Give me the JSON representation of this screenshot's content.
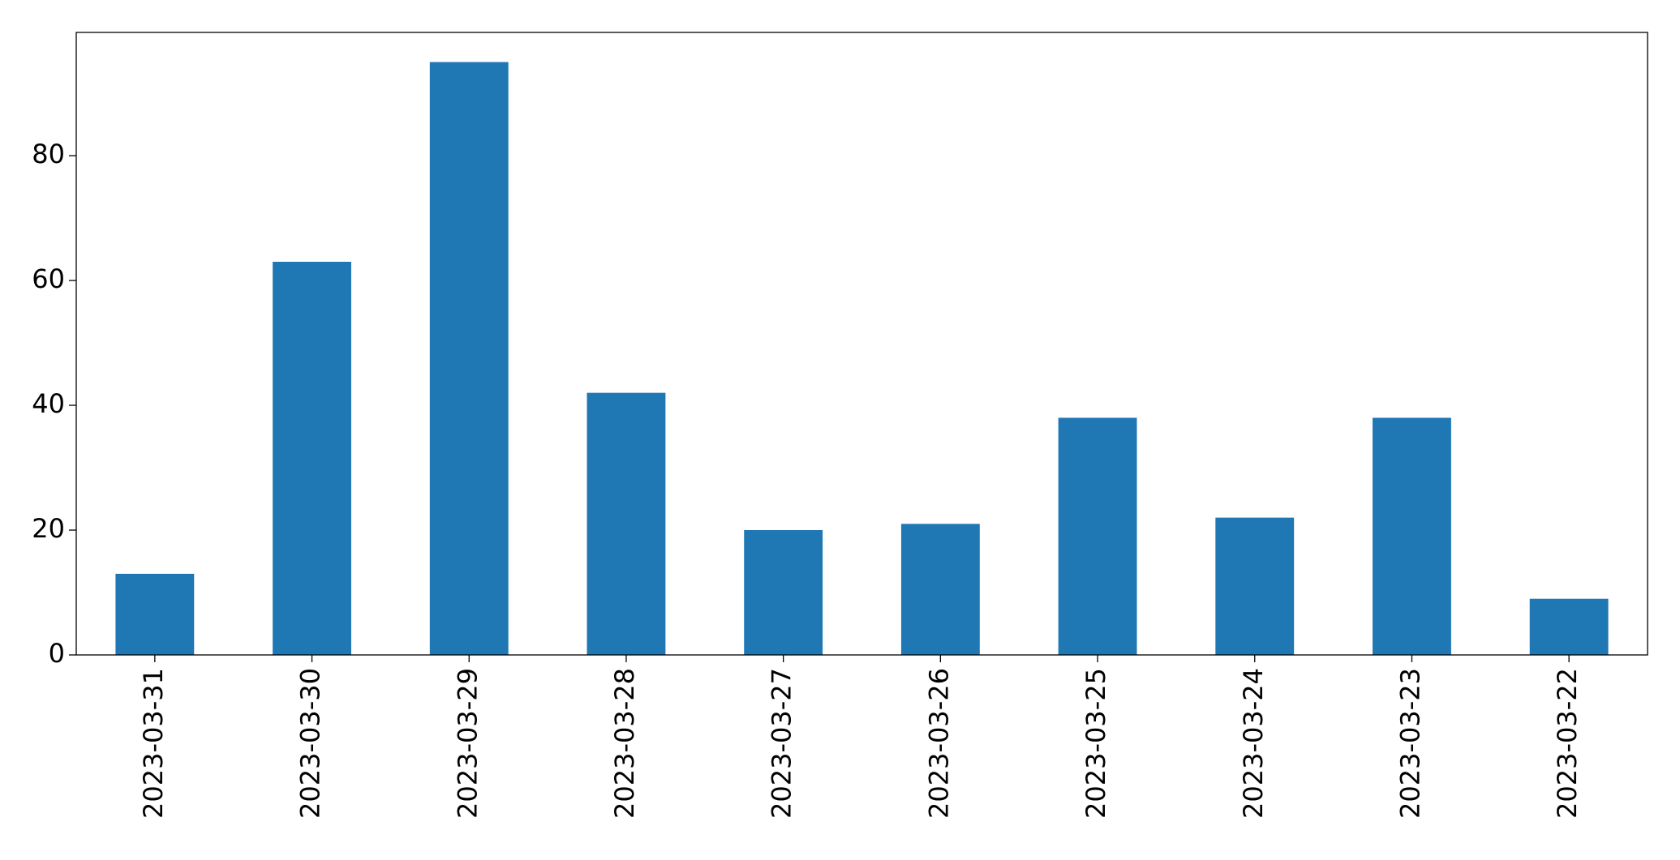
{
  "chart_data": {
    "type": "bar",
    "categories": [
      "2023-03-31",
      "2023-03-30",
      "2023-03-29",
      "2023-03-28",
      "2023-03-27",
      "2023-03-26",
      "2023-03-25",
      "2023-03-24",
      "2023-03-23",
      "2023-03-22"
    ],
    "values": [
      13,
      63,
      95,
      42,
      20,
      21,
      38,
      22,
      38,
      9
    ],
    "color": "#1f77b4",
    "ylim": [
      0,
      99.75
    ],
    "yticks": [
      0,
      20,
      40,
      60,
      80
    ],
    "grid": false
  }
}
